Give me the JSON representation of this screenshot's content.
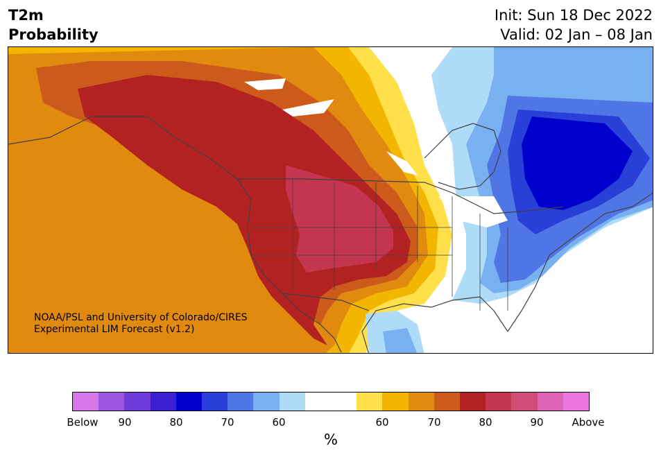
{
  "title": {
    "line1": "T2m",
    "line2": "Probability"
  },
  "dates": {
    "init": "Init: Sun 18 Dec 2022",
    "valid": "Valid: 02 Jan – 08 Jan"
  },
  "credit": {
    "line1": "NOAA/PSL and University of Colorado/CIRES",
    "line2": "Experimental LIM Forecast (v1.2)"
  },
  "colorbar": {
    "unit": "%",
    "ticks": [
      "Below",
      "90",
      "80",
      "70",
      "60",
      "60",
      "70",
      "80",
      "90",
      "Above"
    ],
    "colors": [
      "#d676e8",
      "#9b55de",
      "#6e3ad8",
      "#3b20d0",
      "#0000cc",
      "#2940d8",
      "#4f76e4",
      "#78b0f0",
      "#aedcf8",
      "#ffffff",
      "#ffffff",
      "#ffe04a",
      "#f2b500",
      "#e08a10",
      "#cc5a1a",
      "#b22222",
      "#c43650",
      "#cf4c78",
      "#de62b8",
      "#ea76e0"
    ]
  },
  "map": {
    "region": "North America",
    "colors": {
      "above_60": "#ffe04a",
      "above_65": "#f2b500",
      "above_70": "#e08a10",
      "above_75": "#cc5a1a",
      "above_80": "#b22222",
      "above_85": "#c43650",
      "below_60": "#aedcf8",
      "below_65": "#78b0f0",
      "below_70": "#4f76e4",
      "below_75": "#2940d8",
      "below_80": "#0000cc",
      "borders": "#404040"
    }
  }
}
